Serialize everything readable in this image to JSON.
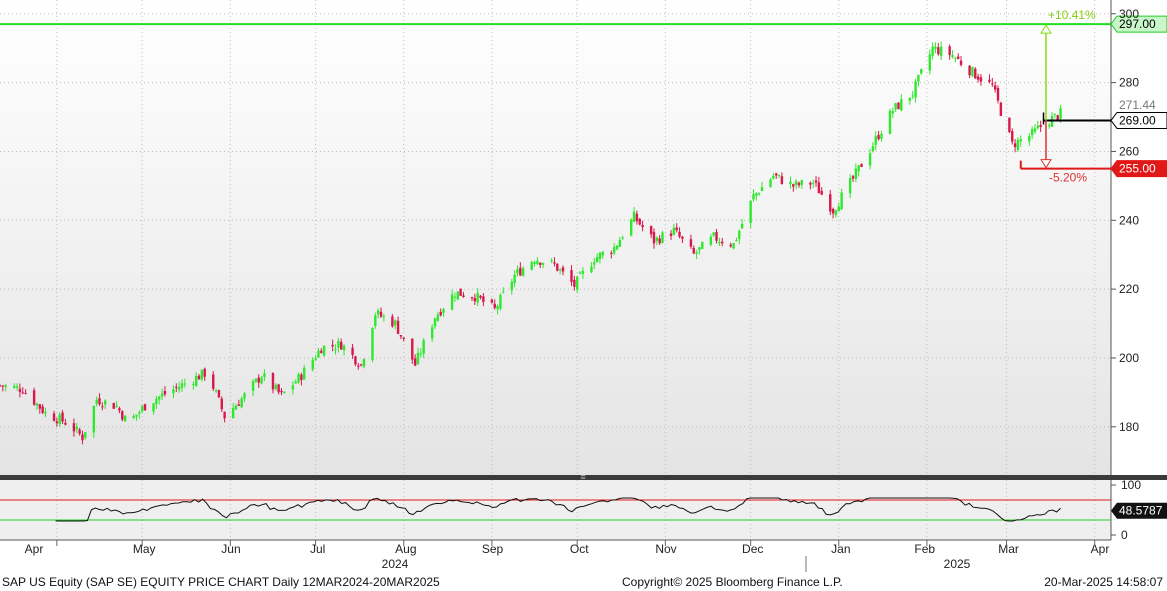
{
  "chart_data": {
    "type": "candlestick",
    "security": "SAP US Equity (SAP SE) EQUITY PRICE CHART",
    "frequency": "Daily",
    "date_range": "12MAR2024-20MAR2025",
    "price_axis": {
      "ylim": [
        166,
        304
      ],
      "ticks": [
        180,
        200,
        220,
        240,
        260,
        280,
        300
      ]
    },
    "rsi_axis": {
      "ylim": [
        -10,
        110
      ],
      "ticks": [
        0,
        100
      ],
      "overbought": 70,
      "oversold": 30
    },
    "month_labels": [
      "Apr",
      "May",
      "Jun",
      "Jul",
      "Aug",
      "Sep",
      "Oct",
      "Nov",
      "Dec",
      "Jan",
      "Feb",
      "Mar",
      "Apr"
    ],
    "year_labels": [
      "2024",
      "2025"
    ],
    "levels": [
      {
        "name": "high-target",
        "value": 297.0,
        "label": "297.00",
        "color": "#22dd22"
      },
      {
        "name": "current",
        "value": 269.0,
        "label": "269.00",
        "color": "#000000"
      },
      {
        "name": "low-target",
        "value": 255.0,
        "label": "255.00",
        "color": "#e01818"
      }
    ],
    "last_price_label": "271.44",
    "rsi_value_label": "48.5787",
    "upside_label": "+10.41%",
    "downside_label": "-5.20%",
    "anchor_points": [
      {
        "date": "2024-03-12",
        "close": 192
      },
      {
        "date": "2024-03-20",
        "close": 191
      },
      {
        "date": "2024-03-28",
        "close": 184
      },
      {
        "date": "2024-04-05",
        "close": 181
      },
      {
        "date": "2024-04-10",
        "close": 177
      },
      {
        "date": "2024-04-15",
        "close": 188
      },
      {
        "date": "2024-04-22",
        "close": 186
      },
      {
        "date": "2024-04-26",
        "close": 181
      },
      {
        "date": "2024-05-03",
        "close": 187
      },
      {
        "date": "2024-05-10",
        "close": 190
      },
      {
        "date": "2024-05-17",
        "close": 193
      },
      {
        "date": "2024-05-24",
        "close": 196
      },
      {
        "date": "2024-05-30",
        "close": 183
      },
      {
        "date": "2024-06-06",
        "close": 189
      },
      {
        "date": "2024-06-12",
        "close": 195
      },
      {
        "date": "2024-06-19",
        "close": 189
      },
      {
        "date": "2024-06-26",
        "close": 195
      },
      {
        "date": "2024-07-03",
        "close": 203
      },
      {
        "date": "2024-07-10",
        "close": 204
      },
      {
        "date": "2024-07-17",
        "close": 198
      },
      {
        "date": "2024-07-22",
        "close": 213
      },
      {
        "date": "2024-07-29",
        "close": 210
      },
      {
        "date": "2024-08-05",
        "close": 198
      },
      {
        "date": "2024-08-12",
        "close": 212
      },
      {
        "date": "2024-08-19",
        "close": 219
      },
      {
        "date": "2024-08-26",
        "close": 218
      },
      {
        "date": "2024-09-02",
        "close": 214
      },
      {
        "date": "2024-09-09",
        "close": 224
      },
      {
        "date": "2024-09-16",
        "close": 229
      },
      {
        "date": "2024-09-23",
        "close": 227
      },
      {
        "date": "2024-09-30",
        "close": 221
      },
      {
        "date": "2024-10-07",
        "close": 229
      },
      {
        "date": "2024-10-14",
        "close": 232
      },
      {
        "date": "2024-10-21",
        "close": 241
      },
      {
        "date": "2024-10-28",
        "close": 234
      },
      {
        "date": "2024-11-04",
        "close": 237
      },
      {
        "date": "2024-11-11",
        "close": 230
      },
      {
        "date": "2024-11-18",
        "close": 235
      },
      {
        "date": "2024-11-25",
        "close": 233
      },
      {
        "date": "2024-12-02",
        "close": 247
      },
      {
        "date": "2024-12-09",
        "close": 253
      },
      {
        "date": "2024-12-16",
        "close": 250
      },
      {
        "date": "2024-12-23",
        "close": 251
      },
      {
        "date": "2024-12-30",
        "close": 243
      },
      {
        "date": "2025-01-06",
        "close": 252
      },
      {
        "date": "2025-01-13",
        "close": 262
      },
      {
        "date": "2025-01-20",
        "close": 272
      },
      {
        "date": "2025-01-27",
        "close": 277
      },
      {
        "date": "2025-02-03",
        "close": 290
      },
      {
        "date": "2025-02-10",
        "close": 288
      },
      {
        "date": "2025-02-17",
        "close": 283
      },
      {
        "date": "2025-02-24",
        "close": 279
      },
      {
        "date": "2025-03-03",
        "close": 262
      },
      {
        "date": "2025-03-10",
        "close": 265
      },
      {
        "date": "2025-03-14",
        "close": 268
      },
      {
        "date": "2025-03-20",
        "close": 271
      }
    ]
  },
  "footer": {
    "left": "SAP US Equity (SAP SE) EQUITY PRICE CHART  Daily 12MAR2024-20MAR2025",
    "center": "Copyright© 2025 Bloomberg Finance L.P.",
    "right": "20-Mar-2025 14:58:07"
  }
}
